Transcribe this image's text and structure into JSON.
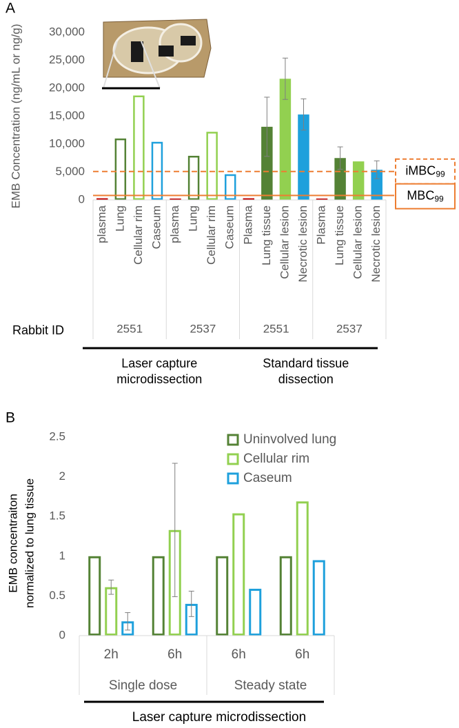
{
  "chart_data": [
    {
      "type": "bar",
      "panel": "A",
      "ylabel": "EMB Concentration (ng/mL or ng/g)",
      "categories": [
        "plasma",
        "Lung",
        "Cellular rim",
        "Caseum",
        "plasma",
        "Lung",
        "Cellular rim",
        "Caseum",
        "Plasma",
        "Lung tissue",
        "Cellular lesion",
        "Necrotic lesion",
        "Plasma",
        "Lung tissue",
        "Cellular lesion",
        "Necrotic lesion"
      ],
      "values": [
        300,
        11000,
        18700,
        10400,
        250,
        7900,
        12200,
        4600,
        300,
        13100,
        21700,
        15300,
        250,
        7500,
        6900,
        5400
      ],
      "errors": [
        null,
        null,
        null,
        null,
        null,
        null,
        null,
        null,
        null,
        5300,
        3700,
        2800,
        null,
        2000,
        null,
        1600
      ],
      "colors": [
        "#c00000",
        "#548235",
        "#92d050",
        "#1ea0dc",
        "#c00000",
        "#548235",
        "#92d050",
        "#1ea0dc",
        "#c00000",
        "#548235",
        "#92d050",
        "#1ea0dc",
        "#c00000",
        "#548235",
        "#92d050",
        "#1ea0dc"
      ],
      "filled": [
        true,
        false,
        false,
        false,
        true,
        false,
        false,
        false,
        true,
        true,
        true,
        true,
        true,
        true,
        true,
        true
      ],
      "group_title": "Rabbit ID",
      "groups": [
        "2551",
        "2537",
        "2551",
        "2537"
      ],
      "sections": [
        [
          "Laser capture",
          "microdissection"
        ],
        [
          "Standard tissue",
          "dissection"
        ]
      ],
      "ylim": [
        0,
        30000
      ],
      "yticks": [
        0,
        {
          "value": 5000,
          "label": "5,000"
        },
        {
          "value": 10000,
          "label": "10,000"
        },
        {
          "value": 15000,
          "label": "15,000"
        },
        {
          "value": 20000,
          "label": "20,000"
        },
        {
          "value": 25000,
          "label": "25,000"
        },
        {
          "value": 30000,
          "label": "30,000"
        }
      ],
      "reference_lines": [
        {
          "name": "iMBC",
          "sub": "99",
          "value": 5100,
          "style": "dashed",
          "color": "#ed7d31"
        },
        {
          "name": "MBC",
          "sub": "99",
          "value": 800,
          "style": "solid",
          "color": "#ed7d31"
        }
      ]
    },
    {
      "type": "grouped_bar",
      "panel": "B",
      "ylabel": [
        "EMB concentraiton",
        "normalized to lung tissue"
      ],
      "categories": [
        "2h",
        "6h",
        "6h",
        "6h"
      ],
      "groups": [
        "Single dose",
        "Steady state"
      ],
      "section": "Laser capture microdissection",
      "series": [
        {
          "name": "Uninvolved lung",
          "color": "#548235",
          "values": [
            1,
            1,
            1,
            1
          ],
          "errors": [
            null,
            null,
            null,
            null
          ]
        },
        {
          "name": "Cellular rim",
          "color": "#92d050",
          "values": [
            0.61,
            1.33,
            1.54,
            1.69
          ],
          "errors": [
            0.09,
            0.84,
            null,
            null
          ]
        },
        {
          "name": "Caseum",
          "color": "#1ea0dc",
          "values": [
            0.18,
            0.4,
            0.59,
            0.95
          ],
          "errors": [
            0.11,
            0.16,
            null,
            null
          ]
        }
      ],
      "ylim": [
        0,
        2.5
      ],
      "yticks": [
        0,
        0.5,
        1,
        1.5,
        2,
        2.5
      ]
    }
  ]
}
